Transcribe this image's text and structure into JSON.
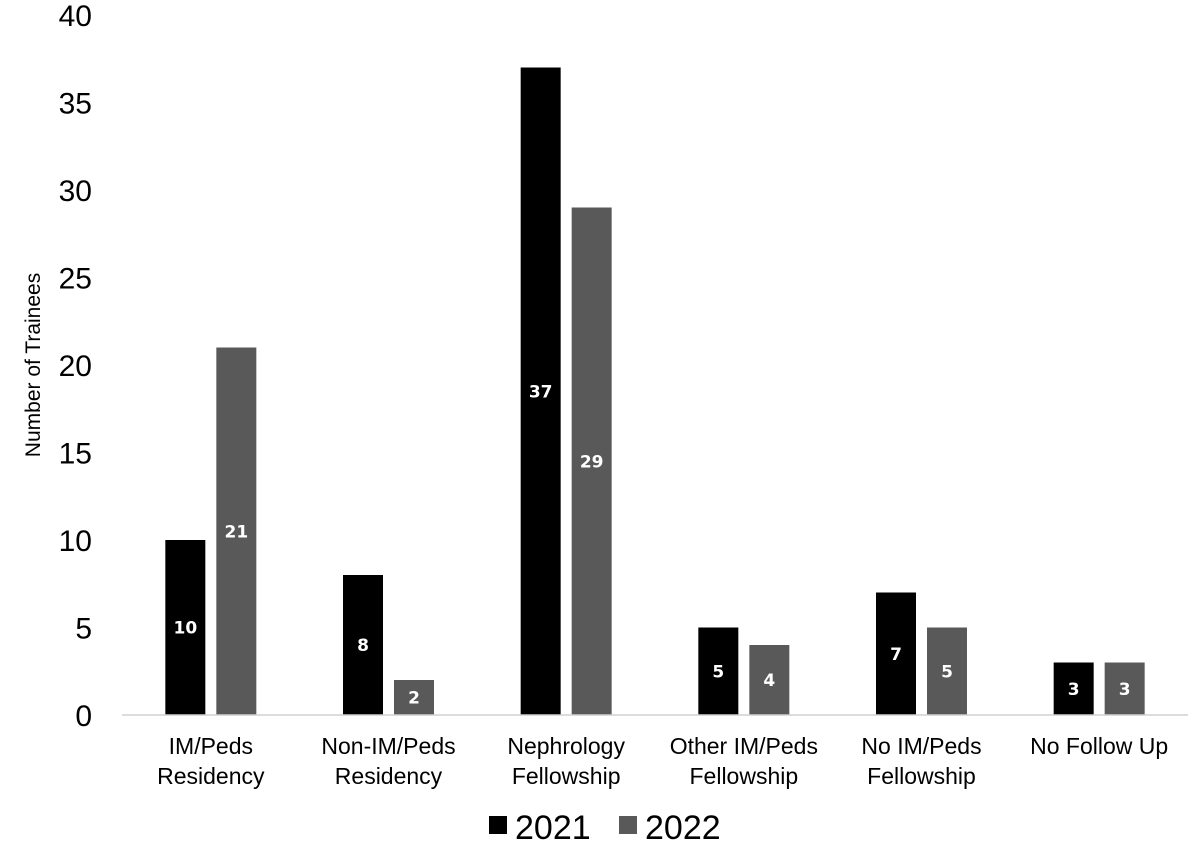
{
  "chart_data": {
    "type": "bar",
    "title": "",
    "xlabel": "",
    "ylabel": "Number of Trainees",
    "ylim": [
      0,
      40
    ],
    "yticks": [
      0,
      5,
      10,
      15,
      20,
      25,
      30,
      35,
      40
    ],
    "grid": false,
    "legend_position": "bottom",
    "categories": [
      [
        "IM/Peds",
        "Residency"
      ],
      [
        "Non-IM/Peds",
        "Residency"
      ],
      [
        "Nephrology",
        "Fellowship"
      ],
      [
        "Other IM/Peds",
        "Fellowship"
      ],
      [
        "No IM/Peds",
        "Fellowship"
      ],
      [
        "No Follow Up"
      ]
    ],
    "series": [
      {
        "name": "2021",
        "color": "#000000",
        "values": [
          10,
          8,
          37,
          5,
          7,
          3
        ]
      },
      {
        "name": "2022",
        "color": "#595959",
        "values": [
          21,
          2,
          29,
          4,
          5,
          3
        ]
      }
    ]
  }
}
